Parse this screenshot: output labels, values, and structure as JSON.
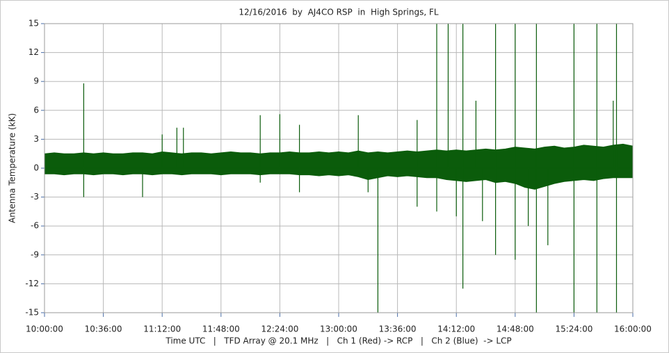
{
  "chart_data": {
    "type": "band",
    "title": "12/16/2016  by  AJ4CO RSP  in  High Springs, FL",
    "y_label": "Antenna Temperature (kK)",
    "x_label": "Time UTC   |   TFD Array @ 20.1 MHz   |   Ch 1 (Red) -> RCP   |   Ch 2 (Blue)  -> LCP",
    "color": "#0b5c0b",
    "grid": true,
    "xlim": [
      "10:00:00",
      "16:00:00"
    ],
    "xticks": [
      "10:00:00",
      "10:36:00",
      "11:12:00",
      "11:48:00",
      "12:24:00",
      "13:00:00",
      "13:36:00",
      "14:12:00",
      "14:48:00",
      "15:24:00",
      "16:00:00"
    ],
    "ylim": [
      -15,
      15
    ],
    "yticks": [
      -15,
      -12,
      -9,
      -6,
      -3,
      0,
      3,
      6,
      9,
      12,
      15
    ],
    "x": [
      "10:00:00",
      "10:06:00",
      "10:12:00",
      "10:18:00",
      "10:24:00",
      "10:30:00",
      "10:36:00",
      "10:42:00",
      "10:48:00",
      "10:54:00",
      "11:00:00",
      "11:06:00",
      "11:12:00",
      "11:18:00",
      "11:24:00",
      "11:30:00",
      "11:36:00",
      "11:42:00",
      "11:48:00",
      "11:54:00",
      "12:00:00",
      "12:06:00",
      "12:12:00",
      "12:18:00",
      "12:24:00",
      "12:30:00",
      "12:36:00",
      "12:42:00",
      "12:48:00",
      "12:54:00",
      "13:00:00",
      "13:06:00",
      "13:12:00",
      "13:18:00",
      "13:24:00",
      "13:30:00",
      "13:36:00",
      "13:42:00",
      "13:48:00",
      "13:54:00",
      "14:00:00",
      "14:06:00",
      "14:12:00",
      "14:18:00",
      "14:24:00",
      "14:30:00",
      "14:36:00",
      "14:42:00",
      "14:48:00",
      "14:54:00",
      "15:00:00",
      "15:06:00",
      "15:12:00",
      "15:18:00",
      "15:24:00",
      "15:30:00",
      "15:36:00",
      "15:42:00",
      "15:48:00",
      "15:54:00",
      "16:00:00"
    ],
    "upper": [
      1.5,
      1.6,
      1.5,
      1.5,
      1.6,
      1.5,
      1.6,
      1.5,
      1.5,
      1.6,
      1.6,
      1.5,
      1.7,
      1.6,
      1.5,
      1.6,
      1.6,
      1.5,
      1.6,
      1.7,
      1.6,
      1.6,
      1.5,
      1.6,
      1.6,
      1.7,
      1.6,
      1.6,
      1.7,
      1.6,
      1.7,
      1.6,
      1.8,
      1.6,
      1.7,
      1.6,
      1.7,
      1.8,
      1.7,
      1.8,
      1.9,
      1.8,
      1.9,
      1.8,
      1.9,
      2.0,
      1.9,
      2.0,
      2.2,
      2.1,
      2.0,
      2.2,
      2.3,
      2.1,
      2.2,
      2.4,
      2.3,
      2.2,
      2.4,
      2.5,
      2.3
    ],
    "lower": [
      -0.6,
      -0.6,
      -0.7,
      -0.6,
      -0.6,
      -0.7,
      -0.6,
      -0.6,
      -0.7,
      -0.6,
      -0.6,
      -0.7,
      -0.6,
      -0.6,
      -0.7,
      -0.6,
      -0.6,
      -0.6,
      -0.7,
      -0.6,
      -0.6,
      -0.6,
      -0.7,
      -0.6,
      -0.6,
      -0.6,
      -0.7,
      -0.7,
      -0.8,
      -0.7,
      -0.8,
      -0.7,
      -0.9,
      -1.2,
      -1.0,
      -0.8,
      -0.9,
      -0.8,
      -0.9,
      -1.0,
      -1.0,
      -1.2,
      -1.3,
      -1.4,
      -1.3,
      -1.2,
      -1.5,
      -1.4,
      -1.6,
      -2.0,
      -2.2,
      -1.9,
      -1.6,
      -1.4,
      -1.3,
      -1.2,
      -1.3,
      -1.1,
      -1.0,
      -1.0,
      -1.0
    ],
    "spikes": {
      "x": [
        "10:24:00",
        "10:24:00",
        "11:00:00",
        "11:12:00",
        "11:21:00",
        "11:25:00",
        "12:12:00",
        "12:12:00",
        "12:24:00",
        "12:36:00",
        "12:36:00",
        "13:12:00",
        "13:18:00",
        "13:24:00",
        "13:48:00",
        "13:48:00",
        "14:00:00",
        "14:00:00",
        "14:07:00",
        "14:12:00",
        "14:16:00",
        "14:16:00",
        "14:24:00",
        "14:28:00",
        "14:36:00",
        "14:36:00",
        "14:48:00",
        "14:48:00",
        "14:56:00",
        "15:01:00",
        "15:01:00",
        "15:08:00",
        "15:24:00",
        "15:24:00",
        "15:38:00",
        "15:38:00",
        "15:48:00",
        "15:50:00",
        "15:50:00"
      ],
      "values": [
        8.8,
        -3,
        -3,
        3.5,
        4.2,
        4.2,
        5.5,
        -1.5,
        5.6,
        4.5,
        -2.5,
        5.5,
        -2.5,
        -15,
        5,
        -4,
        15,
        -4.5,
        15,
        -5,
        15,
        -12.5,
        7,
        -5.5,
        15,
        -9,
        15,
        -9.5,
        -6,
        15,
        -15,
        -8,
        15,
        -15,
        15,
        -15,
        7,
        15,
        -15
      ]
    }
  }
}
